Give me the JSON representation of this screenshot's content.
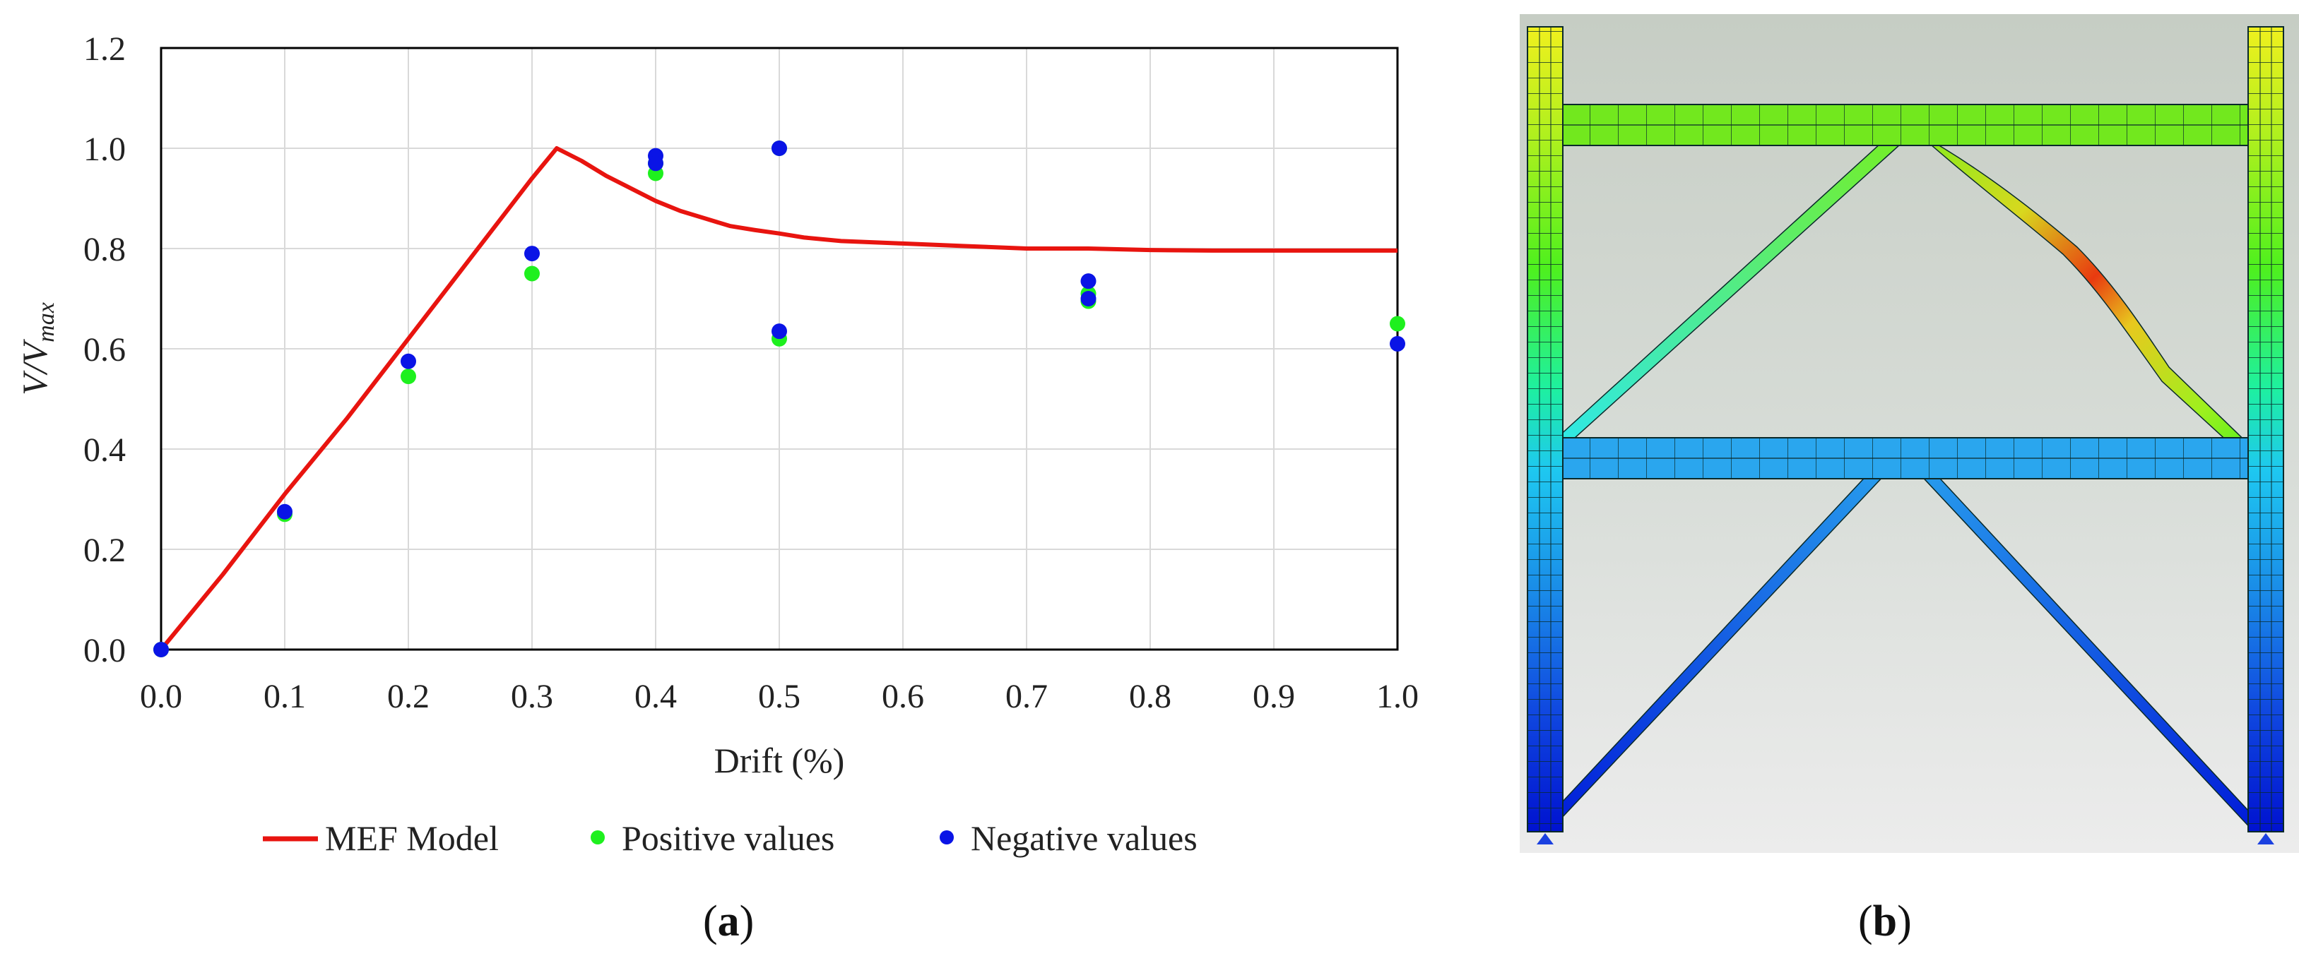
{
  "chart_data": {
    "type": "scatter",
    "title": "",
    "xlabel": "Drift (%)",
    "ylabel_main": "V/V",
    "ylabel_sub": "max",
    "xlim": [
      0.0,
      1.0
    ],
    "ylim": [
      0.0,
      1.2
    ],
    "x_ticks": [
      0.0,
      0.1,
      0.2,
      0.3,
      0.4,
      0.5,
      0.6,
      0.7,
      0.8,
      0.9,
      1.0
    ],
    "y_ticks": [
      0.0,
      0.2,
      0.4,
      0.6,
      0.8,
      1.0,
      1.2
    ],
    "x_tick_labels": [
      "0.0",
      "0.1",
      "0.2",
      "0.3",
      "0.4",
      "0.5",
      "0.6",
      "0.7",
      "0.8",
      "0.9",
      "1.0"
    ],
    "y_tick_labels": [
      "0.0",
      "0.2",
      "0.4",
      "0.6",
      "0.8",
      "1.0",
      "1.2"
    ],
    "grid": true,
    "legend_position": "bottom",
    "series": [
      {
        "name": "MEF Model",
        "kind": "line",
        "color": "#e8140f",
        "x": [
          0.0,
          0.05,
          0.1,
          0.15,
          0.2,
          0.25,
          0.3,
          0.32,
          0.34,
          0.36,
          0.38,
          0.4,
          0.42,
          0.44,
          0.46,
          0.48,
          0.5,
          0.52,
          0.55,
          0.6,
          0.65,
          0.7,
          0.75,
          0.8,
          0.85,
          0.9,
          0.95,
          1.0
        ],
        "y": [
          0.0,
          0.15,
          0.31,
          0.46,
          0.62,
          0.78,
          0.94,
          1.0,
          0.975,
          0.945,
          0.92,
          0.895,
          0.875,
          0.86,
          0.845,
          0.837,
          0.83,
          0.822,
          0.815,
          0.81,
          0.805,
          0.8,
          0.8,
          0.797,
          0.796,
          0.796,
          0.796,
          0.796
        ]
      },
      {
        "name": "Positive values",
        "kind": "scatter",
        "color": "#1ef01e",
        "x": [
          0.0,
          0.1,
          0.2,
          0.3,
          0.4,
          0.4,
          0.5,
          0.5,
          0.75,
          0.75,
          1.0
        ],
        "y": [
          0.0,
          0.27,
          0.545,
          0.75,
          0.95,
          0.97,
          0.62,
          1.0,
          0.695,
          0.71,
          0.65
        ]
      },
      {
        "name": "Negative values",
        "kind": "scatter",
        "color": "#0a14e6",
        "x": [
          0.0,
          0.1,
          0.2,
          0.3,
          0.4,
          0.4,
          0.5,
          0.5,
          0.75,
          0.75,
          1.0
        ],
        "y": [
          0.0,
          0.275,
          0.575,
          0.79,
          0.985,
          0.97,
          0.635,
          1.0,
          0.735,
          0.7,
          0.61
        ]
      }
    ]
  },
  "panels": {
    "a_label": "a",
    "b_label": "b"
  },
  "fem_model": {
    "description_colors": {
      "low": "#0018d8",
      "mid_low": "#1aa0e8",
      "mid": "#22e0e0",
      "mid_high": "#6ee81e",
      "high": "#e8e81e",
      "peak": "#e81e0c"
    }
  }
}
